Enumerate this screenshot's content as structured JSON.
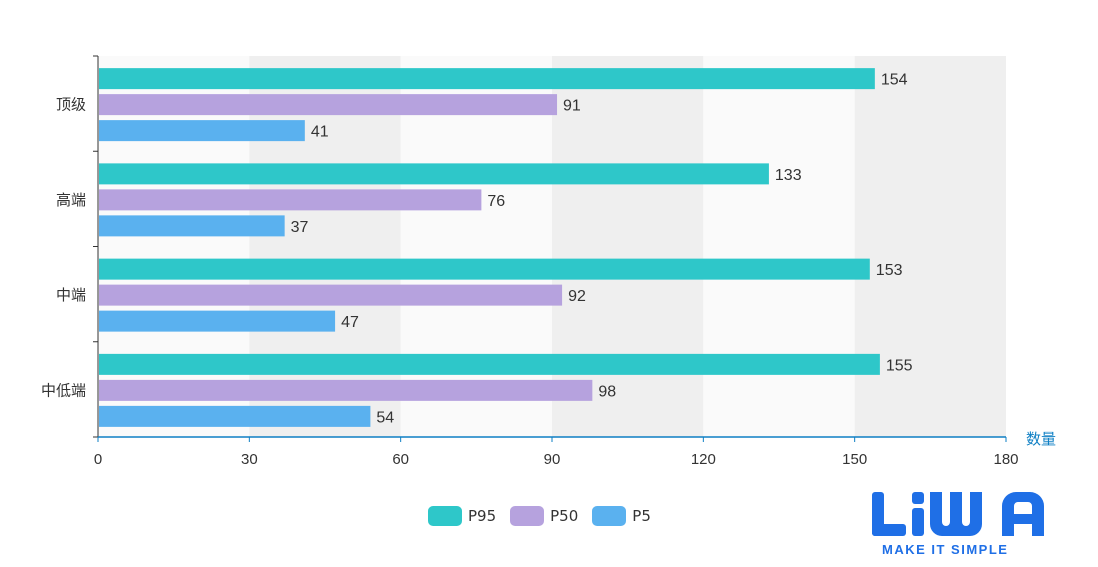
{
  "chart_data": {
    "type": "bar",
    "orientation": "horizontal",
    "categories": [
      "顶级",
      "高端",
      "中端",
      "中低端"
    ],
    "series": [
      {
        "name": "P95",
        "color": "#2ec7c9",
        "values": [
          154,
          133,
          153,
          155
        ]
      },
      {
        "name": "P50",
        "color": "#b6a2de",
        "values": [
          91,
          76,
          92,
          98
        ]
      },
      {
        "name": "P5",
        "color": "#5ab1ef",
        "values": [
          41,
          37,
          47,
          54
        ]
      }
    ],
    "xlabel": "数量",
    "xlim": [
      0,
      180
    ],
    "xticks": [
      0,
      30,
      60,
      90,
      120,
      150,
      180
    ],
    "grid": "alternating vertical bands",
    "legend_position": "bottom-center",
    "data_labels": true
  },
  "logo": {
    "text": "LiWA",
    "tagline": "MAKE IT SIMPLE",
    "color": "#1f6fe6"
  },
  "colors": {
    "axis": "#0e7fc4",
    "band": "#efefef"
  }
}
